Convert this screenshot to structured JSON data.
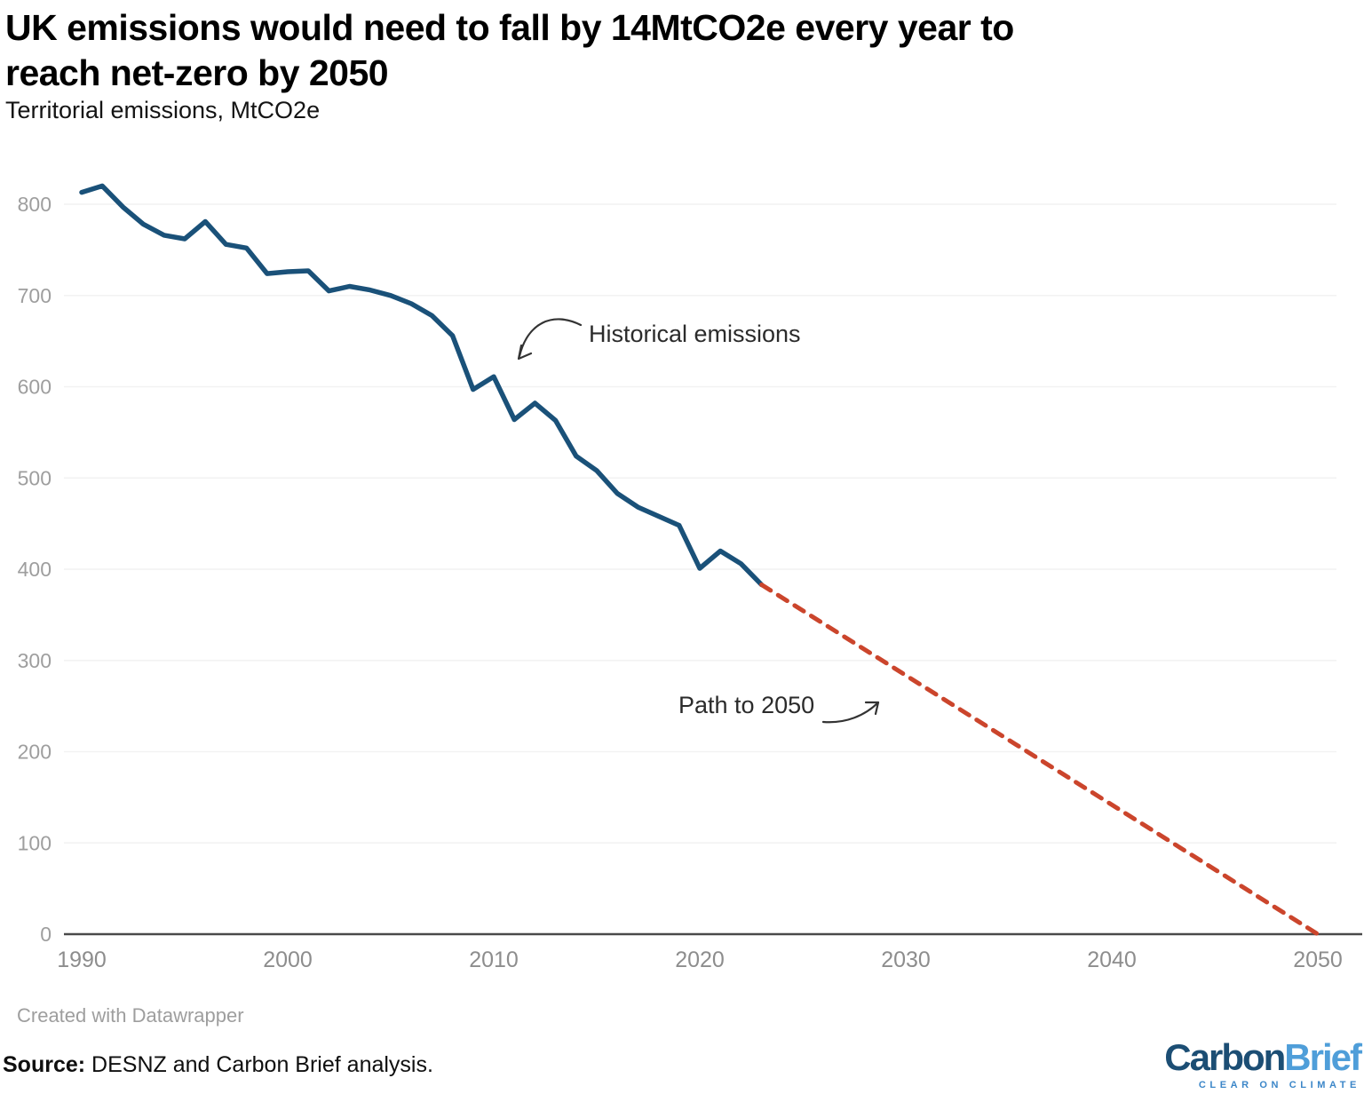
{
  "header": {
    "title_line1": "UK emissions would need to fall by 14MtCO2e every year to",
    "title_line2": "reach net-zero by 2050",
    "subtitle": "Territorial emissions, MtCO2e"
  },
  "chart_data": {
    "type": "line",
    "title": "UK emissions would need to fall by 14MtCO2e every year to reach net-zero by 2050",
    "subtitle": "Territorial emissions, MtCO2e",
    "xlabel": "",
    "ylabel": "Territorial emissions, MtCO2e",
    "xlim": [
      1990,
      2050
    ],
    "ylim": [
      0,
      800
    ],
    "x_ticks": [
      1990,
      2000,
      2010,
      2020,
      2030,
      2040,
      2050
    ],
    "y_ticks": [
      0,
      100,
      200,
      300,
      400,
      500,
      600,
      700,
      800
    ],
    "grid": "horizontal",
    "legend": "none",
    "colors": {
      "historical_line": "#1a5179",
      "path_line": "#cb452c",
      "grid_line": "#f2f2f2",
      "axis_line": "#4a4a4a",
      "y_tick_label": "#9e9e9e",
      "x_tick_label": "#8d8d8d",
      "annotation_text": "#2b2b2b",
      "annotation_arrow": "#333333"
    },
    "series": [
      {
        "name": "Historical emissions",
        "style": "solid",
        "color": "#1a5179",
        "x": [
          1990,
          1991,
          1992,
          1993,
          1994,
          1995,
          1996,
          1997,
          1998,
          1999,
          2000,
          2001,
          2002,
          2003,
          2004,
          2005,
          2006,
          2007,
          2008,
          2009,
          2010,
          2011,
          2012,
          2013,
          2014,
          2015,
          2016,
          2017,
          2018,
          2019,
          2020,
          2021,
          2022,
          2023
        ],
        "values": [
          813,
          820,
          797,
          778,
          766,
          762,
          781,
          756,
          752,
          724,
          726,
          727,
          705,
          710,
          706,
          700,
          691,
          678,
          656,
          597,
          611,
          564,
          582,
          563,
          524,
          508,
          483,
          468,
          458,
          448,
          401,
          420,
          406,
          383
        ]
      },
      {
        "name": "Path to 2050",
        "style": "dashed",
        "color": "#cb452c",
        "x": [
          2023,
          2050
        ],
        "values": [
          383,
          0
        ]
      }
    ],
    "annotations": [
      {
        "text": "Historical emissions"
      },
      {
        "text": "Path to 2050"
      }
    ]
  },
  "footer": {
    "attribution": "Created with Datawrapper",
    "source_label": "Source:",
    "source_text": " DESNZ and Carbon Brief analysis."
  },
  "logo": {
    "part1": "Carbon",
    "part2": "Brief",
    "tagline": "CLEAR ON CLIMATE"
  }
}
